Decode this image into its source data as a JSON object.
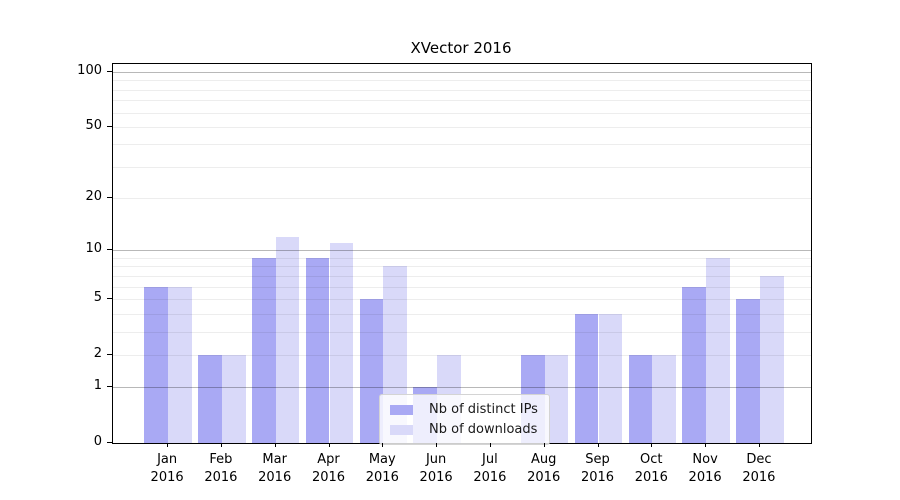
{
  "title": "XVector 2016",
  "colors": {
    "series_ips": "#a9a9f4",
    "series_downloads": "#d9d9f9",
    "grid_major": "rgba(0,0,0,0.28)",
    "grid_minor": "rgba(0,0,0,0.07)",
    "axis": "#000000",
    "legend_border": "#d4d4d4"
  },
  "chart_data": {
    "type": "bar",
    "title": "XVector 2016",
    "categories": [
      {
        "month": "Jan",
        "year": "2016"
      },
      {
        "month": "Feb",
        "year": "2016"
      },
      {
        "month": "Mar",
        "year": "2016"
      },
      {
        "month": "Apr",
        "year": "2016"
      },
      {
        "month": "May",
        "year": "2016"
      },
      {
        "month": "Jun",
        "year": "2016"
      },
      {
        "month": "Jul",
        "year": "2016"
      },
      {
        "month": "Aug",
        "year": "2016"
      },
      {
        "month": "Sep",
        "year": "2016"
      },
      {
        "month": "Oct",
        "year": "2016"
      },
      {
        "month": "Nov",
        "year": "2016"
      },
      {
        "month": "Dec",
        "year": "2016"
      }
    ],
    "series": [
      {
        "name": "Nb of distinct IPs",
        "color": "#a9a9f4",
        "values": [
          6,
          2,
          9,
          9,
          5,
          1,
          0,
          2,
          4,
          2,
          6,
          5
        ]
      },
      {
        "name": "Nb of downloads",
        "color": "#d9d9f9",
        "values": [
          6,
          2,
          12,
          11,
          8,
          2,
          0,
          2,
          4,
          2,
          9,
          7
        ]
      }
    ],
    "xlabel": "",
    "ylabel": "",
    "y_scale": "symlog ln(1+v)",
    "y_ticks": [
      0,
      1,
      2,
      5,
      10,
      20,
      50,
      100
    ],
    "y_major_gridlines": [
      1,
      10,
      100
    ],
    "y_minor_gridlines": [
      2,
      3,
      4,
      5,
      6,
      7,
      8,
      9,
      20,
      30,
      40,
      50,
      60,
      70,
      80,
      90
    ],
    "ylim": [
      0,
      111
    ],
    "grid": true,
    "legend_position": "lower center"
  }
}
